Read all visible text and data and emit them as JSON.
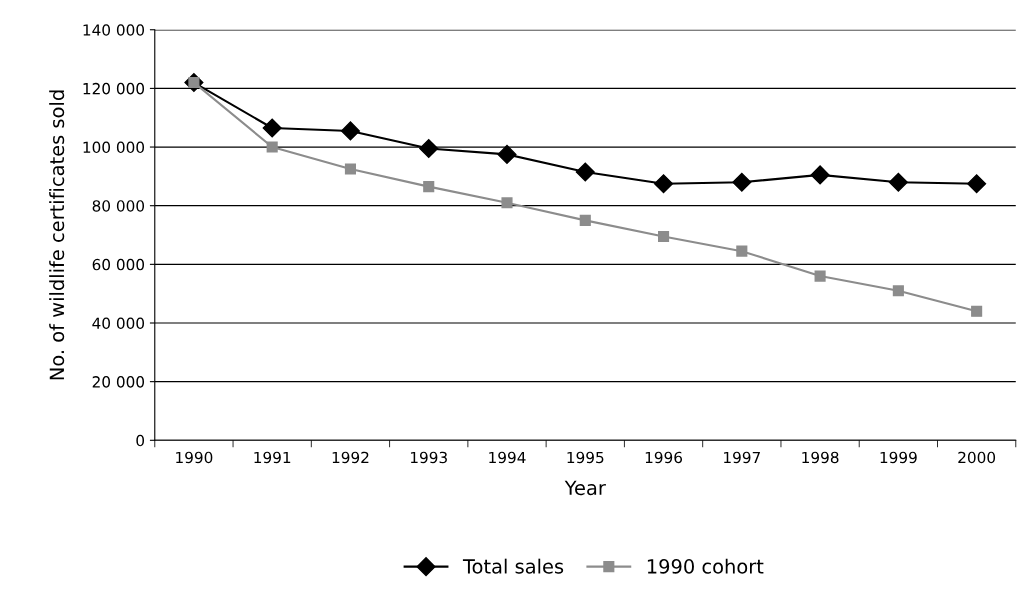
{
  "chart_data": {
    "type": "line",
    "xlabel": "Year",
    "ylabel": "No. of wildlife certificates sold",
    "categories": [
      "1990",
      "1991",
      "1992",
      "1993",
      "1994",
      "1995",
      "1996",
      "1997",
      "1998",
      "1999",
      "2000"
    ],
    "series": [
      {
        "name": "Total sales",
        "color": "#000000",
        "marker": "diamond",
        "values": [
          122000,
          106500,
          105500,
          99500,
          97500,
          91500,
          87500,
          88000,
          90500,
          88000,
          87500
        ]
      },
      {
        "name": "1990 cohort",
        "color": "#8c8c8c",
        "marker": "square",
        "values": [
          122000,
          100000,
          92500,
          86500,
          81000,
          75000,
          69500,
          64500,
          56000,
          51000,
          44000
        ]
      }
    ],
    "ylim": [
      0,
      140000
    ],
    "yticks": [
      {
        "value": 0,
        "label": "0"
      },
      {
        "value": 20000,
        "label": "20 000"
      },
      {
        "value": 40000,
        "label": "40 000"
      },
      {
        "value": 60000,
        "label": "60 000"
      },
      {
        "value": 80000,
        "label": "80 000"
      },
      {
        "value": 100000,
        "label": "100 000"
      },
      {
        "value": 120000,
        "label": "120 000"
      },
      {
        "value": 140000,
        "label": "140 000"
      }
    ],
    "grid": "y",
    "legend": "bottom",
    "line_style": "solid"
  }
}
